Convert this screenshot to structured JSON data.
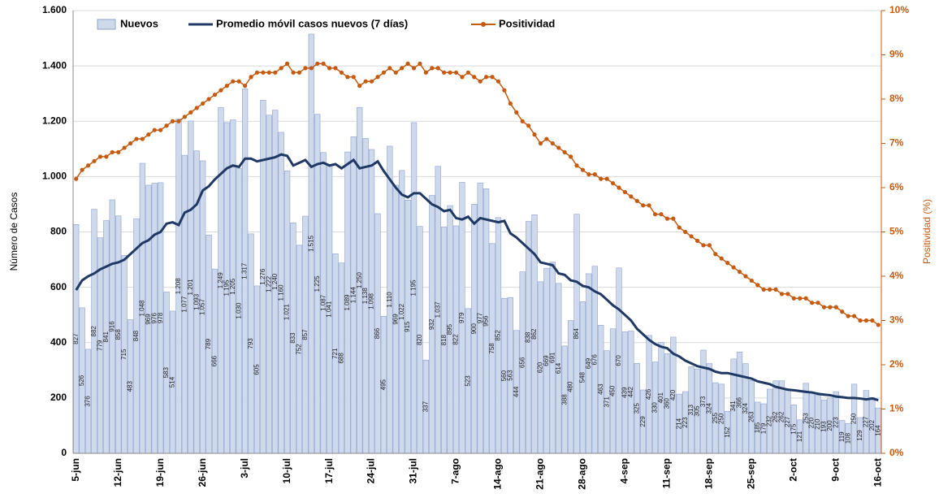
{
  "chart_data": {
    "type": "combo",
    "categories": [
      "5-jun",
      null,
      null,
      null,
      null,
      null,
      null,
      "12-jun",
      null,
      null,
      null,
      null,
      null,
      null,
      "19-jun",
      null,
      null,
      null,
      null,
      null,
      null,
      "26-jun",
      null,
      null,
      null,
      null,
      null,
      null,
      "3-jul",
      null,
      null,
      null,
      null,
      null,
      null,
      "10-jul",
      null,
      null,
      null,
      null,
      null,
      null,
      "17-jul",
      null,
      null,
      null,
      null,
      null,
      null,
      "24-jul",
      null,
      null,
      null,
      null,
      null,
      null,
      "31-jul",
      null,
      null,
      null,
      null,
      null,
      null,
      "7-ago",
      null,
      null,
      null,
      null,
      null,
      null,
      "14-ago",
      null,
      null,
      null,
      null,
      null,
      null,
      "21-ago",
      null,
      null,
      null,
      null,
      null,
      null,
      "28-ago",
      null,
      null,
      null,
      null,
      null,
      null,
      "4-sep",
      null,
      null,
      null,
      null,
      null,
      null,
      "11-sep",
      null,
      null,
      null,
      null,
      null,
      null,
      "18-sep",
      null,
      null,
      null,
      null,
      null,
      null,
      "25-sep",
      null,
      null,
      null,
      null,
      null,
      null,
      "2-oct",
      null,
      null,
      null,
      null,
      null,
      null,
      "9-oct",
      null,
      null,
      null,
      null,
      null,
      null,
      "16-oct"
    ],
    "series": [
      {
        "name": "Nuevos",
        "type": "bar",
        "color": "#cfd9ec",
        "values": [
          827,
          526,
          376,
          882,
          779,
          841,
          916,
          858,
          715,
          483,
          848,
          1048,
          969,
          976,
          978,
          583,
          514,
          1208,
          1077,
          1201,
          1093,
          1057,
          789,
          666,
          1249,
          1195,
          1205,
          1030,
          1317,
          793,
          605,
          1276,
          1222,
          1240,
          1160,
          1021,
          833,
          752,
          857,
          1515,
          1225,
          1087,
          1041,
          721,
          688,
          1089,
          1144,
          1250,
          1138,
          1098,
          866,
          495,
          1110,
          969,
          1022,
          915,
          1195,
          820,
          337,
          932,
          1037,
          818,
          895,
          822,
          979,
          523,
          900,
          977,
          956,
          758,
          852,
          560,
          563,
          444,
          656,
          838,
          862,
          620,
          669,
          691,
          614,
          388,
          480,
          864,
          548,
          649,
          676,
          463,
          371,
          450,
          670,
          439,
          442,
          325,
          229,
          426,
          330,
          401,
          360,
          420,
          214,
          223,
          313,
          305,
          373,
          324,
          255,
          250,
          152,
          341,
          366,
          324,
          263,
          185,
          179,
          232,
          262,
          262,
          227,
          175,
          121,
          253,
          220,
          210,
          193,
          200,
          223,
          119,
          108,
          250,
          129,
          227,
          202,
          164
        ],
        "value_labels": [
          "827",
          "526",
          "376",
          "882",
          "779",
          "841",
          "916",
          "858",
          "715",
          "483",
          "848",
          "1.048",
          "969",
          "976",
          "978",
          "583",
          "514",
          "1.208",
          "1.077",
          "1.201",
          "1.093",
          "1.057",
          "789",
          "666",
          "1.249",
          "1.195",
          "1.205",
          "1.030",
          "1.317",
          "793",
          "605",
          "1.276",
          "1.222",
          "1.240",
          "1.160",
          "1.021",
          "833",
          "752",
          "857",
          "1.515",
          "1.225",
          "1.087",
          "1.041",
          "721",
          "688",
          "1.089",
          "1.144",
          "1.250",
          "1.138",
          "1.098",
          "866",
          "495",
          "1.110",
          "969",
          "1.022",
          "915",
          "1.195",
          "820",
          "337",
          "932",
          "1.037",
          "818",
          "895",
          "822",
          "979",
          "523",
          "900",
          "977",
          "956",
          "758",
          "852",
          "560",
          "563",
          "444",
          "656",
          "838",
          "862",
          "620",
          "669",
          "691",
          "614",
          "388",
          "480",
          "864",
          "548",
          "649",
          "676",
          "463",
          "371",
          "450",
          "670",
          "439",
          "442",
          "325",
          "229",
          "426",
          "330",
          "401",
          "360",
          "420",
          "214",
          "223",
          "313",
          "305",
          "373",
          "324",
          "255",
          "250",
          "152",
          "341",
          "366",
          "324",
          "263",
          "185",
          "179",
          "232",
          "262",
          "262",
          "227",
          "175",
          "121",
          "253",
          "220",
          "210",
          "193",
          "200",
          "223",
          "119",
          "108",
          "250",
          "129",
          "227",
          "202",
          "164"
        ]
      },
      {
        "name": "Promedio móvil casos nuevos (7 días)",
        "type": "line",
        "color": "#1f3864",
        "values": [
          590,
          625,
          640,
          650,
          665,
          675,
          685,
          690,
          700,
          720,
          740,
          760,
          770,
          790,
          800,
          830,
          835,
          825,
          870,
          880,
          900,
          950,
          965,
          990,
          1010,
          1030,
          1040,
          1035,
          1065,
          1065,
          1055,
          1060,
          1065,
          1070,
          1080,
          1075,
          1040,
          1050,
          1060,
          1035,
          1045,
          1050,
          1040,
          1045,
          1030,
          1045,
          1060,
          1030,
          1035,
          1040,
          1055,
          1020,
          990,
          960,
          935,
          925,
          940,
          940,
          920,
          900,
          890,
          875,
          880,
          850,
          845,
          855,
          830,
          850,
          845,
          840,
          835,
          840,
          795,
          780,
          760,
          740,
          720,
          690,
          685,
          680,
          650,
          645,
          625,
          620,
          605,
          600,
          585,
          575,
          555,
          535,
          520,
          500,
          480,
          450,
          430,
          410,
          395,
          385,
          380,
          360,
          350,
          335,
          325,
          315,
          310,
          305,
          295,
          290,
          290,
          285,
          280,
          275,
          270,
          260,
          255,
          250,
          240,
          235,
          230,
          228,
          225,
          222,
          220,
          215,
          212,
          210,
          205,
          203,
          200,
          200,
          198,
          195,
          198,
          192
        ]
      },
      {
        "name": "Positividad",
        "type": "line",
        "markers": true,
        "axis": "y2",
        "color": "#c55a11",
        "values": [
          6.2,
          6.4,
          6.5,
          6.6,
          6.7,
          6.7,
          6.8,
          6.8,
          6.9,
          7.0,
          7.1,
          7.1,
          7.2,
          7.3,
          7.3,
          7.4,
          7.5,
          7.5,
          7.6,
          7.7,
          7.8,
          7.9,
          8.0,
          8.1,
          8.2,
          8.3,
          8.4,
          8.4,
          8.3,
          8.5,
          8.6,
          8.6,
          8.6,
          8.6,
          8.7,
          8.8,
          8.6,
          8.6,
          8.7,
          8.7,
          8.8,
          8.8,
          8.7,
          8.7,
          8.6,
          8.5,
          8.5,
          8.3,
          8.4,
          8.4,
          8.5,
          8.6,
          8.7,
          8.6,
          8.7,
          8.8,
          8.7,
          8.8,
          8.6,
          8.7,
          8.7,
          8.6,
          8.6,
          8.6,
          8.5,
          8.6,
          8.5,
          8.4,
          8.5,
          8.5,
          8.4,
          8.2,
          7.9,
          7.7,
          7.5,
          7.4,
          7.2,
          7.0,
          7.1,
          7.0,
          6.9,
          6.8,
          6.7,
          6.5,
          6.4,
          6.3,
          6.3,
          6.2,
          6.2,
          6.1,
          6.0,
          5.9,
          5.8,
          5.7,
          5.6,
          5.6,
          5.4,
          5.4,
          5.3,
          5.3,
          5.1,
          5.0,
          4.9,
          4.8,
          4.7,
          4.7,
          4.5,
          4.4,
          4.3,
          4.2,
          4.1,
          4.0,
          3.9,
          3.8,
          3.7,
          3.7,
          3.7,
          3.6,
          3.6,
          3.5,
          3.5,
          3.5,
          3.4,
          3.4,
          3.3,
          3.3,
          3.3,
          3.2,
          3.1,
          3.1,
          3.0,
          3.0,
          3.0,
          2.9
        ]
      }
    ],
    "y_label": "Número de Casos",
    "y2_label": "Positividad (%)",
    "ylim": [
      0,
      1600
    ],
    "yticks": [
      0,
      200,
      400,
      600,
      800,
      {
        "value": 1000,
        "label": "1.000"
      },
      {
        "value": 1200,
        "label": "1.200"
      },
      {
        "value": 1400,
        "label": "1.400"
      },
      {
        "value": 1600,
        "label": "1.600"
      }
    ],
    "y2lim": [
      0,
      10
    ],
    "y2ticks": [
      {
        "value": 0,
        "label": "0%"
      },
      {
        "value": 1,
        "label": "1%"
      },
      {
        "value": 2,
        "label": "2%"
      },
      {
        "value": 3,
        "label": "3%"
      },
      {
        "value": 4,
        "label": "4%"
      },
      {
        "value": 5,
        "label": "5%"
      },
      {
        "value": 6,
        "label": "6%"
      },
      {
        "value": 7,
        "label": "7%"
      },
      {
        "value": 8,
        "label": "8%"
      },
      {
        "value": 9,
        "label": "9%"
      },
      {
        "value": 10,
        "label": "10%"
      }
    ],
    "grid": true,
    "legend": "top"
  }
}
